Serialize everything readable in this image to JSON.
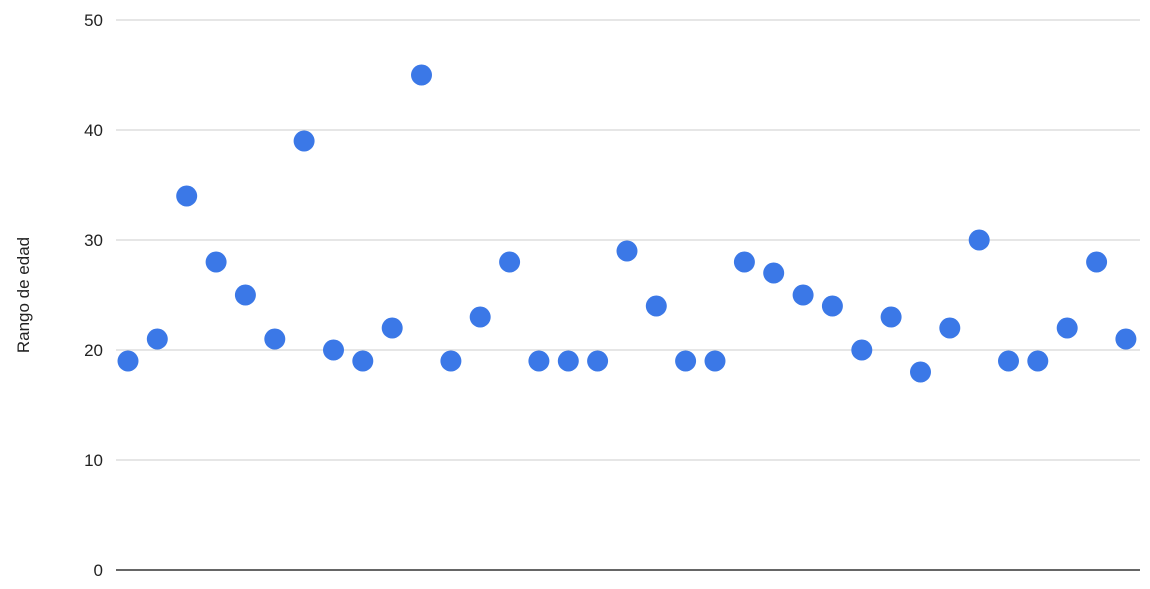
{
  "chart_data": {
    "type": "scatter",
    "title": "",
    "xlabel": "",
    "ylabel": "Rango de edad",
    "ylim": [
      0,
      50
    ],
    "yticks": [
      0,
      10,
      20,
      30,
      40,
      50
    ],
    "grid": true,
    "legend": "none",
    "point_color": "#3b78e7",
    "x": [
      1,
      2,
      3,
      4,
      5,
      6,
      7,
      8,
      9,
      10,
      11,
      12,
      13,
      14,
      15,
      16,
      17,
      18,
      19,
      20,
      21,
      22,
      23,
      24,
      25,
      26,
      27,
      28,
      29,
      30,
      31,
      32,
      33,
      34,
      35
    ],
    "y": [
      19,
      21,
      34,
      28,
      25,
      21,
      39,
      20,
      19,
      22,
      45,
      19,
      23,
      28,
      19,
      19,
      19,
      29,
      24,
      19,
      19,
      28,
      27,
      25,
      24,
      20,
      23,
      18,
      22,
      30,
      19,
      19,
      22,
      28,
      21
    ]
  }
}
